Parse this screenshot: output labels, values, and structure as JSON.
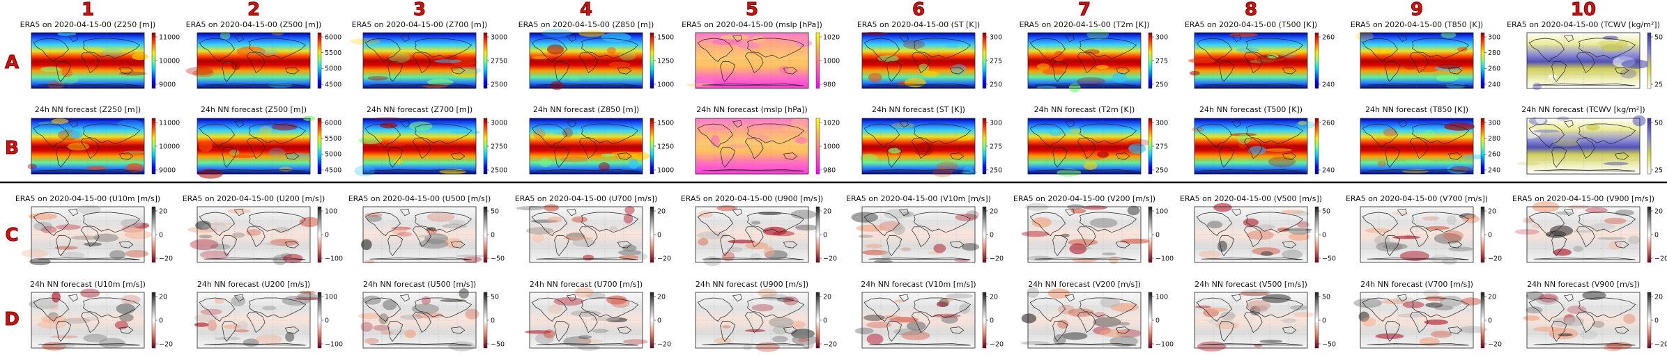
{
  "chart_data": {
    "type": "heatmap",
    "column_labels": [
      "1",
      "2",
      "3",
      "4",
      "5",
      "6",
      "7",
      "8",
      "9",
      "10"
    ],
    "row_labels": [
      "A",
      "B",
      "C",
      "D"
    ],
    "panels": [
      {
        "row": "A",
        "col": 1,
        "title": "ERA5 on 2020-04-15-00 (Z250 [m])",
        "cmap": "jet",
        "ticks": [
          "11000",
          "10000",
          "9000"
        ]
      },
      {
        "row": "A",
        "col": 2,
        "title": "ERA5 on 2020-04-15-00 (Z500 [m])",
        "cmap": "jet",
        "ticks": [
          "6000",
          "5500",
          "5000",
          "4500"
        ]
      },
      {
        "row": "A",
        "col": 3,
        "title": "ERA5 on 2020-04-15-00 (Z700 [m])",
        "cmap": "jet",
        "ticks": [
          "3000",
          "2750",
          "2500"
        ]
      },
      {
        "row": "A",
        "col": 4,
        "title": "ERA5 on 2020-04-15-00 (Z850 [m])",
        "cmap": "jet",
        "ticks": [
          "1500",
          "1250",
          "1000"
        ]
      },
      {
        "row": "A",
        "col": 5,
        "title": "ERA5 on 2020-04-15-00 (mslp [hPa])",
        "cmap": "spring",
        "ticks": [
          "1020",
          "1000",
          "980"
        ]
      },
      {
        "row": "A",
        "col": 6,
        "title": "ERA5 on 2020-04-15-00 (ST [K])",
        "cmap": "jet",
        "ticks": [
          "300",
          "275",
          "250"
        ]
      },
      {
        "row": "A",
        "col": 7,
        "title": "ERA5 on 2020-04-15-00 (T2m [K])",
        "cmap": "jet",
        "ticks": [
          "300",
          "275",
          "250"
        ]
      },
      {
        "row": "A",
        "col": 8,
        "title": "ERA5 on 2020-04-15-00 (T500 [K])",
        "cmap": "jet",
        "ticks": [
          "260",
          "240"
        ]
      },
      {
        "row": "A",
        "col": 9,
        "title": "ERA5 on 2020-04-15-00 (T850 [K])",
        "cmap": "jet",
        "ticks": [
          "300",
          "280",
          "260",
          "240"
        ]
      },
      {
        "row": "A",
        "col": 10,
        "title": "ERA5 on 2020-04-15-00 (TCWV [kg/m²])",
        "cmap": "tcwv",
        "ticks": [
          "50",
          "25"
        ]
      },
      {
        "row": "B",
        "col": 1,
        "title": "24h NN forecast (Z250 [m])",
        "cmap": "jet",
        "ticks": [
          "11000",
          "10000",
          "9000"
        ]
      },
      {
        "row": "B",
        "col": 2,
        "title": "24h NN forecast (Z500 [m])",
        "cmap": "jet",
        "ticks": [
          "6000",
          "5500",
          "5000",
          "4500"
        ]
      },
      {
        "row": "B",
        "col": 3,
        "title": "24h NN forecast (Z700 [m])",
        "cmap": "jet",
        "ticks": [
          "3000",
          "2750",
          "2500"
        ]
      },
      {
        "row": "B",
        "col": 4,
        "title": "24h NN forecast (Z850 [m])",
        "cmap": "jet",
        "ticks": [
          "1500",
          "1250",
          "1000"
        ]
      },
      {
        "row": "B",
        "col": 5,
        "title": "24h NN forecast (mslp [hPa])",
        "cmap": "spring",
        "ticks": [
          "1020",
          "1000",
          "980"
        ]
      },
      {
        "row": "B",
        "col": 6,
        "title": "24h NN forecast (ST [K])",
        "cmap": "jet",
        "ticks": [
          "300",
          "275",
          "250"
        ]
      },
      {
        "row": "B",
        "col": 7,
        "title": "24h NN forecast (T2m [K])",
        "cmap": "jet",
        "ticks": [
          "300",
          "275",
          "250"
        ]
      },
      {
        "row": "B",
        "col": 8,
        "title": "24h NN forecast (T500 [K])",
        "cmap": "jet",
        "ticks": [
          "260",
          "240"
        ]
      },
      {
        "row": "B",
        "col": 9,
        "title": "24h NN forecast (T850 [K])",
        "cmap": "jet",
        "ticks": [
          "300",
          "280",
          "260",
          "240"
        ]
      },
      {
        "row": "B",
        "col": 10,
        "title": "24h NN forecast (TCWV [kg/m²])",
        "cmap": "tcwv",
        "ticks": [
          "50",
          "25"
        ]
      },
      {
        "row": "C",
        "col": 1,
        "title": "ERA5 on 2020-04-15-00 (U10m [m/s])",
        "cmap": "rdgy",
        "ticks": [
          "20",
          "0",
          "−20"
        ]
      },
      {
        "row": "C",
        "col": 2,
        "title": "ERA5 on 2020-04-15-00 (U200 [m/s])",
        "cmap": "rdgy",
        "ticks": [
          "100",
          "0",
          "−100"
        ]
      },
      {
        "row": "C",
        "col": 3,
        "title": "ERA5 on 2020-04-15-00 (U500 [m/s])",
        "cmap": "rdgy",
        "ticks": [
          "50",
          "0",
          "−50"
        ]
      },
      {
        "row": "C",
        "col": 4,
        "title": "ERA5 on 2020-04-15-00 (U700 [m/s])",
        "cmap": "rdgy",
        "ticks": [
          "20",
          "0",
          "−20"
        ]
      },
      {
        "row": "C",
        "col": 5,
        "title": "ERA5 on 2020-04-15-00 (U900 [m/s])",
        "cmap": "rdgy",
        "ticks": [
          "20",
          "0",
          "−20"
        ]
      },
      {
        "row": "C",
        "col": 6,
        "title": "ERA5 on 2020-04-15-00 (V10m [m/s])",
        "cmap": "rdgy",
        "ticks": [
          "20",
          "0",
          "−20"
        ]
      },
      {
        "row": "C",
        "col": 7,
        "title": "ERA5 on 2020-04-15-00 (V200 [m/s])",
        "cmap": "rdgy",
        "ticks": [
          "100",
          "0",
          "−100"
        ]
      },
      {
        "row": "C",
        "col": 8,
        "title": "ERA5 on 2020-04-15-00 (V500 [m/s])",
        "cmap": "rdgy",
        "ticks": [
          "50",
          "0",
          "−50"
        ]
      },
      {
        "row": "C",
        "col": 9,
        "title": "ERA5 on 2020-04-15-00 (V700 [m/s])",
        "cmap": "rdgy",
        "ticks": [
          "20",
          "0",
          "−20"
        ]
      },
      {
        "row": "C",
        "col": 10,
        "title": "ERA5 on 2020-04-15-00 (V900 [m/s])",
        "cmap": "rdgy",
        "ticks": [
          "20",
          "0",
          "−20"
        ]
      },
      {
        "row": "D",
        "col": 1,
        "title": "24h NN forecast (U10m [m/s])",
        "cmap": "rdgy",
        "ticks": [
          "20",
          "0",
          "−20"
        ]
      },
      {
        "row": "D",
        "col": 2,
        "title": "24h NN forecast (U200 [m/s])",
        "cmap": "rdgy",
        "ticks": [
          "100",
          "0",
          "−100"
        ]
      },
      {
        "row": "D",
        "col": 3,
        "title": "24h NN forecast (U500 [m/s])",
        "cmap": "rdgy",
        "ticks": [
          "50",
          "0",
          "−50"
        ]
      },
      {
        "row": "D",
        "col": 4,
        "title": "24h NN forecast (U700 [m/s])",
        "cmap": "rdgy",
        "ticks": [
          "20",
          "0",
          "−20"
        ]
      },
      {
        "row": "D",
        "col": 5,
        "title": "24h NN forecast (U900 [m/s])",
        "cmap": "rdgy",
        "ticks": [
          "20",
          "0",
          "−20"
        ]
      },
      {
        "row": "D",
        "col": 6,
        "title": "24h NN forecast (V10m [m/s])",
        "cmap": "rdgy",
        "ticks": [
          "20",
          "0",
          "−20"
        ]
      },
      {
        "row": "D",
        "col": 7,
        "title": "24h NN forecast (V200 [m/s])",
        "cmap": "rdgy",
        "ticks": [
          "100",
          "0",
          "−100"
        ]
      },
      {
        "row": "D",
        "col": 8,
        "title": "24h NN forecast (V500 [m/s])",
        "cmap": "rdgy",
        "ticks": [
          "50",
          "0",
          "−50"
        ]
      },
      {
        "row": "D",
        "col": 9,
        "title": "24h NN forecast (V700 [m/s])",
        "cmap": "rdgy",
        "ticks": [
          "20",
          "0",
          "−20"
        ]
      },
      {
        "row": "D",
        "col": 10,
        "title": "24h NN forecast (V900 [m/s])",
        "cmap": "rdgy",
        "ticks": [
          "20",
          "0",
          "−20"
        ]
      }
    ]
  },
  "colors": {
    "label_red": "#cc1111",
    "separator": "#000000"
  }
}
